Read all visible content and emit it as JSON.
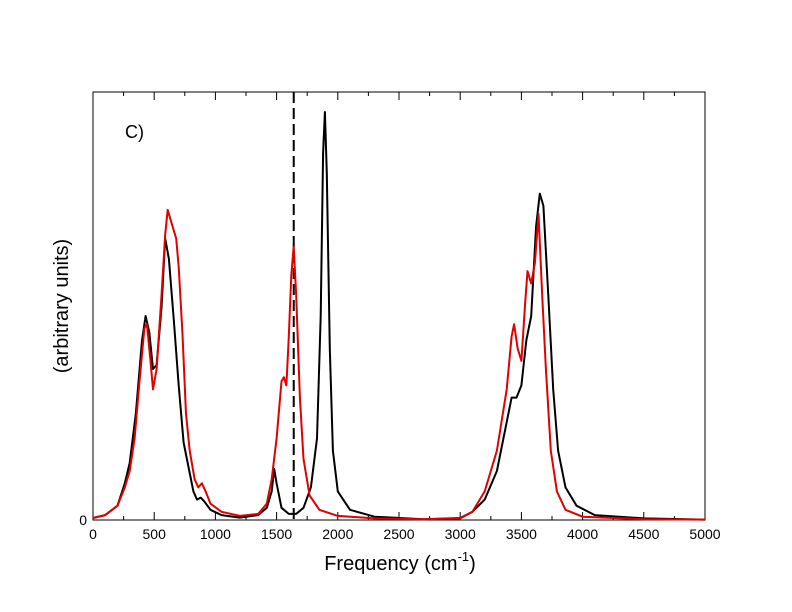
{
  "chart_data": {
    "type": "line",
    "panel_label": "C)",
    "xlabel": "Frequency (cm",
    "xlabel_sup": "-1",
    "xlabel_close": ")",
    "ylabel": "(arbitrary units)",
    "xlim": [
      0,
      5000
    ],
    "ylim": [
      0,
      1.0
    ],
    "x_ticks": [
      0,
      500,
      1000,
      1500,
      2000,
      2500,
      3000,
      3500,
      4000,
      4500,
      5000
    ],
    "y_tick_labels": [
      "0"
    ],
    "vertical_reference_line": {
      "x": 1640,
      "style": "dashed",
      "color": "#000000"
    },
    "series": [
      {
        "name": "black",
        "color": "#000000",
        "points": [
          [
            0,
            0.005
          ],
          [
            100,
            0.012
          ],
          [
            200,
            0.035
          ],
          [
            260,
            0.09
          ],
          [
            300,
            0.14
          ],
          [
            350,
            0.26
          ],
          [
            400,
            0.44
          ],
          [
            430,
            0.5
          ],
          [
            460,
            0.46
          ],
          [
            490,
            0.37
          ],
          [
            520,
            0.38
          ],
          [
            560,
            0.52
          ],
          [
            590,
            0.69
          ],
          [
            620,
            0.64
          ],
          [
            660,
            0.49
          ],
          [
            700,
            0.33
          ],
          [
            740,
            0.19
          ],
          [
            780,
            0.13
          ],
          [
            820,
            0.07
          ],
          [
            850,
            0.05
          ],
          [
            880,
            0.055
          ],
          [
            910,
            0.045
          ],
          [
            960,
            0.025
          ],
          [
            1050,
            0.012
          ],
          [
            1200,
            0.006
          ],
          [
            1350,
            0.012
          ],
          [
            1420,
            0.03
          ],
          [
            1460,
            0.07
          ],
          [
            1480,
            0.125
          ],
          [
            1500,
            0.09
          ],
          [
            1540,
            0.03
          ],
          [
            1600,
            0.015
          ],
          [
            1660,
            0.015
          ],
          [
            1720,
            0.03
          ],
          [
            1780,
            0.08
          ],
          [
            1830,
            0.2
          ],
          [
            1860,
            0.5
          ],
          [
            1880,
            0.9
          ],
          [
            1895,
            1.0
          ],
          [
            1910,
            0.85
          ],
          [
            1935,
            0.42
          ],
          [
            1960,
            0.17
          ],
          [
            2000,
            0.07
          ],
          [
            2100,
            0.025
          ],
          [
            2300,
            0.008
          ],
          [
            2700,
            0.002
          ],
          [
            3000,
            0.005
          ],
          [
            3100,
            0.02
          ],
          [
            3200,
            0.05
          ],
          [
            3300,
            0.12
          ],
          [
            3380,
            0.24
          ],
          [
            3420,
            0.3
          ],
          [
            3460,
            0.3
          ],
          [
            3500,
            0.33
          ],
          [
            3540,
            0.44
          ],
          [
            3580,
            0.5
          ],
          [
            3620,
            0.72
          ],
          [
            3650,
            0.8
          ],
          [
            3680,
            0.77
          ],
          [
            3720,
            0.55
          ],
          [
            3760,
            0.32
          ],
          [
            3800,
            0.17
          ],
          [
            3860,
            0.08
          ],
          [
            3950,
            0.035
          ],
          [
            4100,
            0.012
          ],
          [
            4500,
            0.004
          ],
          [
            5000,
            0.001
          ]
        ]
      },
      {
        "name": "red",
        "color": "#e00000",
        "points": [
          [
            0,
            0.005
          ],
          [
            100,
            0.012
          ],
          [
            200,
            0.035
          ],
          [
            260,
            0.08
          ],
          [
            300,
            0.12
          ],
          [
            340,
            0.2
          ],
          [
            380,
            0.34
          ],
          [
            420,
            0.47
          ],
          [
            440,
            0.48
          ],
          [
            470,
            0.39
          ],
          [
            490,
            0.32
          ],
          [
            520,
            0.37
          ],
          [
            560,
            0.55
          ],
          [
            590,
            0.7
          ],
          [
            610,
            0.76
          ],
          [
            640,
            0.73
          ],
          [
            680,
            0.69
          ],
          [
            700,
            0.62
          ],
          [
            730,
            0.46
          ],
          [
            760,
            0.26
          ],
          [
            790,
            0.17
          ],
          [
            830,
            0.1
          ],
          [
            860,
            0.08
          ],
          [
            890,
            0.09
          ],
          [
            920,
            0.07
          ],
          [
            960,
            0.04
          ],
          [
            1050,
            0.02
          ],
          [
            1200,
            0.01
          ],
          [
            1350,
            0.015
          ],
          [
            1420,
            0.04
          ],
          [
            1460,
            0.1
          ],
          [
            1500,
            0.2
          ],
          [
            1540,
            0.34
          ],
          [
            1560,
            0.35
          ],
          [
            1580,
            0.33
          ],
          [
            1600,
            0.45
          ],
          [
            1620,
            0.6
          ],
          [
            1640,
            0.67
          ],
          [
            1660,
            0.55
          ],
          [
            1690,
            0.3
          ],
          [
            1720,
            0.15
          ],
          [
            1770,
            0.06
          ],
          [
            1850,
            0.025
          ],
          [
            2000,
            0.01
          ],
          [
            2300,
            0.004
          ],
          [
            2700,
            0.002
          ],
          [
            3000,
            0.004
          ],
          [
            3100,
            0.02
          ],
          [
            3200,
            0.07
          ],
          [
            3300,
            0.17
          ],
          [
            3380,
            0.32
          ],
          [
            3420,
            0.45
          ],
          [
            3440,
            0.48
          ],
          [
            3470,
            0.42
          ],
          [
            3500,
            0.39
          ],
          [
            3530,
            0.53
          ],
          [
            3550,
            0.61
          ],
          [
            3580,
            0.58
          ],
          [
            3610,
            0.63
          ],
          [
            3640,
            0.75
          ],
          [
            3670,
            0.55
          ],
          [
            3700,
            0.37
          ],
          [
            3740,
            0.17
          ],
          [
            3790,
            0.07
          ],
          [
            3860,
            0.025
          ],
          [
            4000,
            0.008
          ],
          [
            4500,
            0.002
          ],
          [
            5000,
            0.001
          ]
        ]
      }
    ]
  }
}
